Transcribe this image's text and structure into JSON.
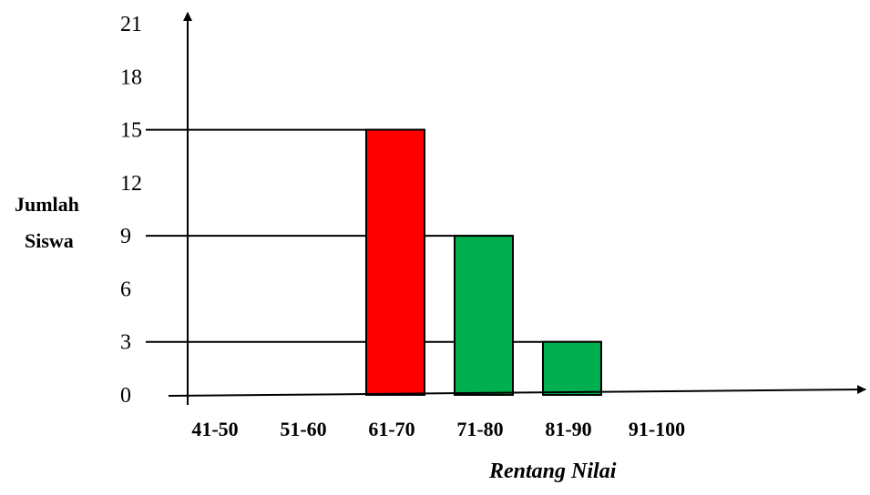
{
  "chart_data": {
    "type": "bar",
    "title": "",
    "ylabel_lines": [
      "Jumlah",
      "Siswa"
    ],
    "xlabel": "Rentang Nilai",
    "categories": [
      "41-50",
      "51-60",
      "61-70",
      "71-80",
      "81-90",
      "91-100"
    ],
    "values": [
      0,
      0,
      15,
      9,
      3,
      0
    ],
    "y_ticks": [
      "0",
      "3",
      "6",
      "9",
      "12",
      "15",
      "18",
      "21"
    ],
    "ylim": [
      0,
      21
    ],
    "bar_colors": [
      "#00b050",
      "#00b050",
      "#ff0000",
      "#00b050",
      "#00b050",
      "#00b050"
    ],
    "reference_lines": [
      15,
      9,
      3
    ],
    "grid": false,
    "legend": "none"
  }
}
